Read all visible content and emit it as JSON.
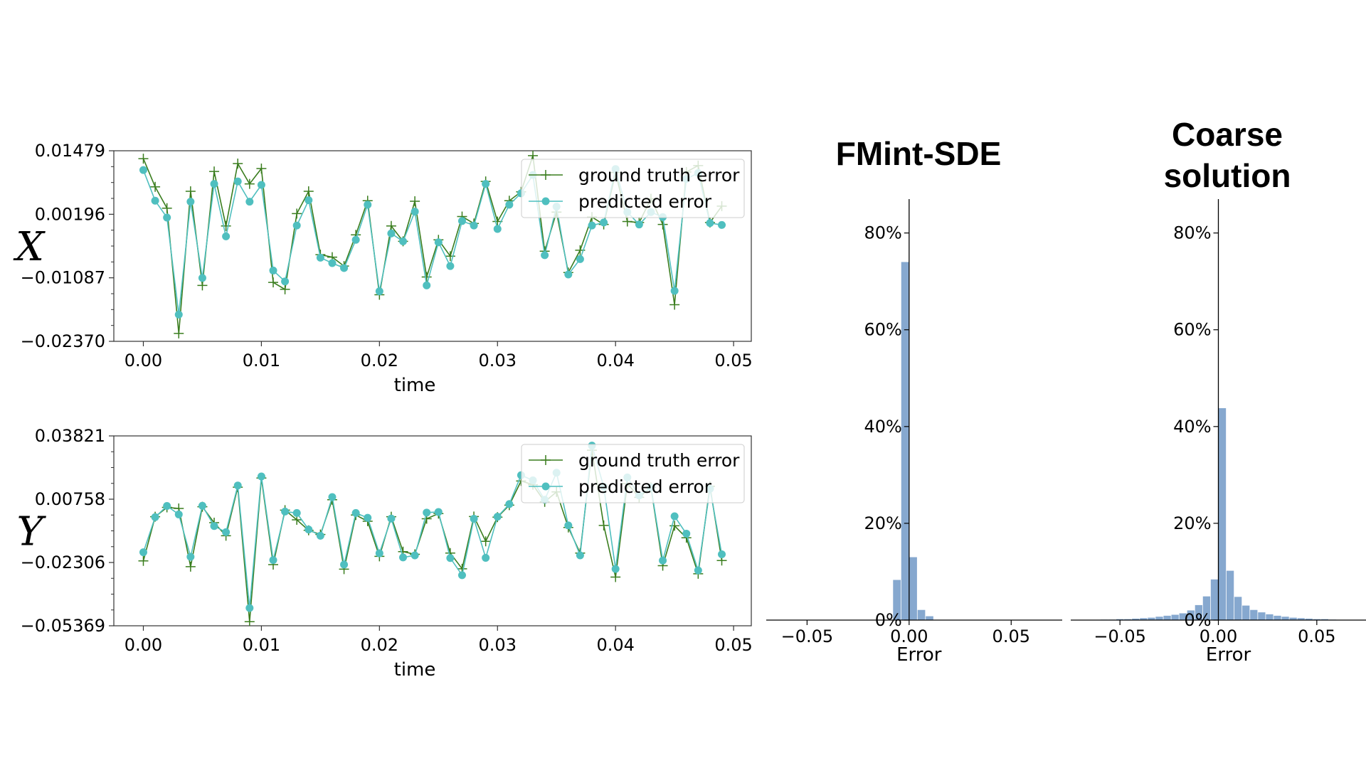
{
  "colors": {
    "truth": "#3a7d1e",
    "pred": "#4fbfbf",
    "hist": "#7fa3cc"
  },
  "chart_data": [
    {
      "type": "line",
      "ylabel": "X",
      "xlabel": "time",
      "xlim": [
        -0.0025,
        0.0515
      ],
      "ylim": [
        -0.0237,
        0.01479
      ],
      "xticks": [
        "0.00",
        "0.01",
        "0.02",
        "0.03",
        "0.04",
        "0.05"
      ],
      "xtick_values": [
        0,
        0.01,
        0.02,
        0.03,
        0.04,
        0.05
      ],
      "yticks": [
        "0.01479",
        "0.00196",
        "−0.01087",
        "−0.02370"
      ],
      "ytick_values": [
        0.01479,
        0.00196,
        -0.01087,
        -0.0237
      ],
      "legend": "top-right",
      "x": [
        0,
        0.001,
        0.002,
        0.003,
        0.004,
        0.005,
        0.006,
        0.007,
        0.008,
        0.009,
        0.01,
        0.011,
        0.012,
        0.013,
        0.014,
        0.015,
        0.016,
        0.017,
        0.018,
        0.019,
        0.02,
        0.021,
        0.022,
        0.023,
        0.024,
        0.025,
        0.026,
        0.027,
        0.028,
        0.029,
        0.03,
        0.031,
        0.032,
        0.033,
        0.034,
        0.035,
        0.036,
        0.037,
        0.038,
        0.039,
        0.04,
        0.041,
        0.042,
        0.043,
        0.044,
        0.045,
        0.046,
        0.047,
        0.048,
        0.049
      ],
      "series": [
        {
          "name": "ground truth error",
          "marker": "plus",
          "values": [
            0.0132,
            0.0075,
            0.0032,
            -0.0221,
            0.0066,
            -0.0124,
            0.0106,
            -0.0004,
            0.0122,
            0.0081,
            0.0112,
            -0.0118,
            -0.0132,
            0.0021,
            0.0066,
            -0.0062,
            -0.0067,
            -0.0085,
            -0.0022,
            0.0047,
            -0.0143,
            -0.0004,
            -0.0035,
            0.0046,
            -0.0107,
            -0.0032,
            -0.0065,
            0.0015,
            0.0001,
            0.0086,
            0.0005,
            0.0047,
            0.0065,
            0.0138,
            -0.0055,
            0.0024,
            -0.0098,
            -0.0053,
            0.0014,
            -0.0001,
            0.0104,
            0.0005,
            0.0003,
            0.0051,
            -0.0001,
            -0.0163,
            0.0105,
            0.0118,
            0.0003,
            0.0036
          ]
        },
        {
          "name": "predicted error",
          "marker": "dot",
          "values": [
            0.0109,
            0.0047,
            0.0013,
            -0.0183,
            0.0045,
            -0.0109,
            0.0081,
            -0.0025,
            0.0086,
            0.0045,
            0.0079,
            -0.0094,
            -0.0116,
            -0.0003,
            0.0048,
            -0.0068,
            -0.0079,
            -0.0089,
            -0.0032,
            0.0039,
            -0.0136,
            -0.0019,
            -0.0035,
            0.0025,
            -0.0124,
            -0.0037,
            -0.0085,
            0.0006,
            -0.0003,
            0.0081,
            -0.001,
            0.0039,
            0.0062,
            0.0099,
            -0.0063,
            0.0035,
            -0.0102,
            -0.0071,
            -0.0003,
            0.0003,
            0.0111,
            0.0024,
            -0.0001,
            0.0024,
            0.0014,
            -0.0135,
            0.0091,
            0.0103,
            0.0002,
            -0.0002
          ]
        }
      ]
    },
    {
      "type": "line",
      "ylabel": "Y",
      "xlabel": "time",
      "xlim": [
        -0.0025,
        0.0515
      ],
      "ylim": [
        -0.05369,
        0.03821
      ],
      "xticks": [
        "0.00",
        "0.01",
        "0.02",
        "0.03",
        "0.04",
        "0.05"
      ],
      "xtick_values": [
        0,
        0.01,
        0.02,
        0.03,
        0.04,
        0.05
      ],
      "yticks": [
        "0.03821",
        "0.00758",
        "−0.02306",
        "−0.05369"
      ],
      "ytick_values": [
        0.03821,
        0.00758,
        -0.02306,
        -0.05369
      ],
      "legend": "top-right",
      "x": [
        0,
        0.001,
        0.002,
        0.003,
        0.004,
        0.005,
        0.006,
        0.007,
        0.008,
        0.009,
        0.01,
        0.011,
        0.012,
        0.013,
        0.014,
        0.015,
        0.016,
        0.017,
        0.018,
        0.019,
        0.02,
        0.021,
        0.022,
        0.023,
        0.024,
        0.025,
        0.026,
        0.027,
        0.028,
        0.029,
        0.03,
        0.031,
        0.032,
        0.033,
        0.034,
        0.035,
        0.036,
        0.037,
        0.038,
        0.039,
        0.04,
        0.041,
        0.042,
        0.043,
        0.044,
        0.045,
        0.046,
        0.047,
        0.048,
        0.049
      ],
      "series": [
        {
          "name": "ground truth error",
          "marker": "plus",
          "values": [
            -0.0223,
            -0.0009,
            0.0036,
            0.0031,
            -0.0251,
            0.0039,
            -0.0038,
            -0.0101,
            0.0134,
            -0.0517,
            0.0178,
            -0.0241,
            0.0023,
            -0.0024,
            -0.0075,
            -0.0095,
            0.0073,
            -0.0263,
            -0.0001,
            -0.0031,
            -0.0201,
            -0.0009,
            -0.0178,
            -0.0191,
            -0.0019,
            0.0006,
            -0.0185,
            -0.0261,
            -0.0008,
            -0.0128,
            -0.0011,
            0.0047,
            0.0164,
            0.0146,
            0.0063,
            0.0111,
            -0.0061,
            -0.0185,
            0.0313,
            -0.0051,
            -0.0301,
            0.0151,
            0.0085,
            0.0133,
            -0.0246,
            -0.0053,
            -0.0111,
            -0.0285,
            0.0138,
            -0.0221
          ]
        },
        {
          "name": "predicted error",
          "marker": "dot",
          "values": [
            -0.0181,
            -0.0011,
            0.0043,
            0.0002,
            -0.0203,
            0.0044,
            -0.0054,
            -0.0084,
            0.0142,
            -0.0451,
            0.0186,
            -0.0219,
            0.0016,
            0.0009,
            -0.0071,
            -0.0101,
            0.0086,
            -0.0241,
            0.0009,
            -0.0014,
            -0.0186,
            -0.0018,
            -0.0206,
            -0.0196,
            0.0011,
            0.0014,
            -0.0209,
            -0.0292,
            -0.0019,
            -0.0208,
            -0.0009,
            0.0052,
            0.0192,
            0.0167,
            0.0073,
            0.0204,
            -0.0051,
            -0.0196,
            0.0335,
            0.0136,
            -0.0262,
            0.0181,
            0.0094,
            0.0133,
            -0.0221,
            -0.0007,
            -0.0091,
            -0.0269,
            0.0126,
            -0.0191
          ]
        }
      ]
    },
    {
      "type": "bar",
      "title": "FMint-SDE",
      "xlabel": "Error",
      "xlim": [
        -0.07,
        0.075
      ],
      "ylim": [
        0,
        0.87
      ],
      "xticks": [
        "−0.05",
        "0.00",
        "0.05"
      ],
      "xtick_values": [
        -0.05,
        0,
        0.05
      ],
      "yticks": [
        "0%",
        "20%",
        "40%",
        "60%",
        "80%"
      ],
      "ytick_values": [
        0,
        0.2,
        0.4,
        0.6,
        0.8
      ],
      "bin_width": 0.004,
      "bin_centers": [
        -0.006,
        -0.002,
        0.002,
        0.006,
        0.01
      ],
      "values": [
        0.083,
        0.74,
        0.13,
        0.021,
        0.008
      ]
    },
    {
      "type": "bar",
      "title": "Coarse solution",
      "xlabel": "Error",
      "xlim": [
        -0.075,
        0.075
      ],
      "ylim": [
        0,
        0.87
      ],
      "xticks": [
        "−0.05",
        "0.00",
        "0.05"
      ],
      "xtick_values": [
        -0.05,
        0,
        0.05
      ],
      "yticks": [
        "0%",
        "20%",
        "40%",
        "60%",
        "80%"
      ],
      "ytick_values": [
        0,
        0.2,
        0.4,
        0.6,
        0.8
      ],
      "bin_width": 0.004,
      "bin_centers": [
        -0.058,
        -0.054,
        -0.05,
        -0.046,
        -0.042,
        -0.038,
        -0.034,
        -0.03,
        -0.026,
        -0.022,
        -0.018,
        -0.014,
        -0.01,
        -0.006,
        -0.002,
        0.002,
        0.006,
        0.01,
        0.014,
        0.018,
        0.022,
        0.026,
        0.03,
        0.034,
        0.038,
        0.042,
        0.046,
        0.05,
        0.054,
        0.058
      ],
      "values": [
        0.001,
        0.001,
        0.002,
        0.002,
        0.003,
        0.004,
        0.005,
        0.007,
        0.009,
        0.011,
        0.014,
        0.02,
        0.031,
        0.049,
        0.084,
        0.438,
        0.102,
        0.048,
        0.03,
        0.021,
        0.016,
        0.012,
        0.009,
        0.007,
        0.005,
        0.004,
        0.003,
        0.002,
        0.002,
        0.001
      ]
    }
  ]
}
